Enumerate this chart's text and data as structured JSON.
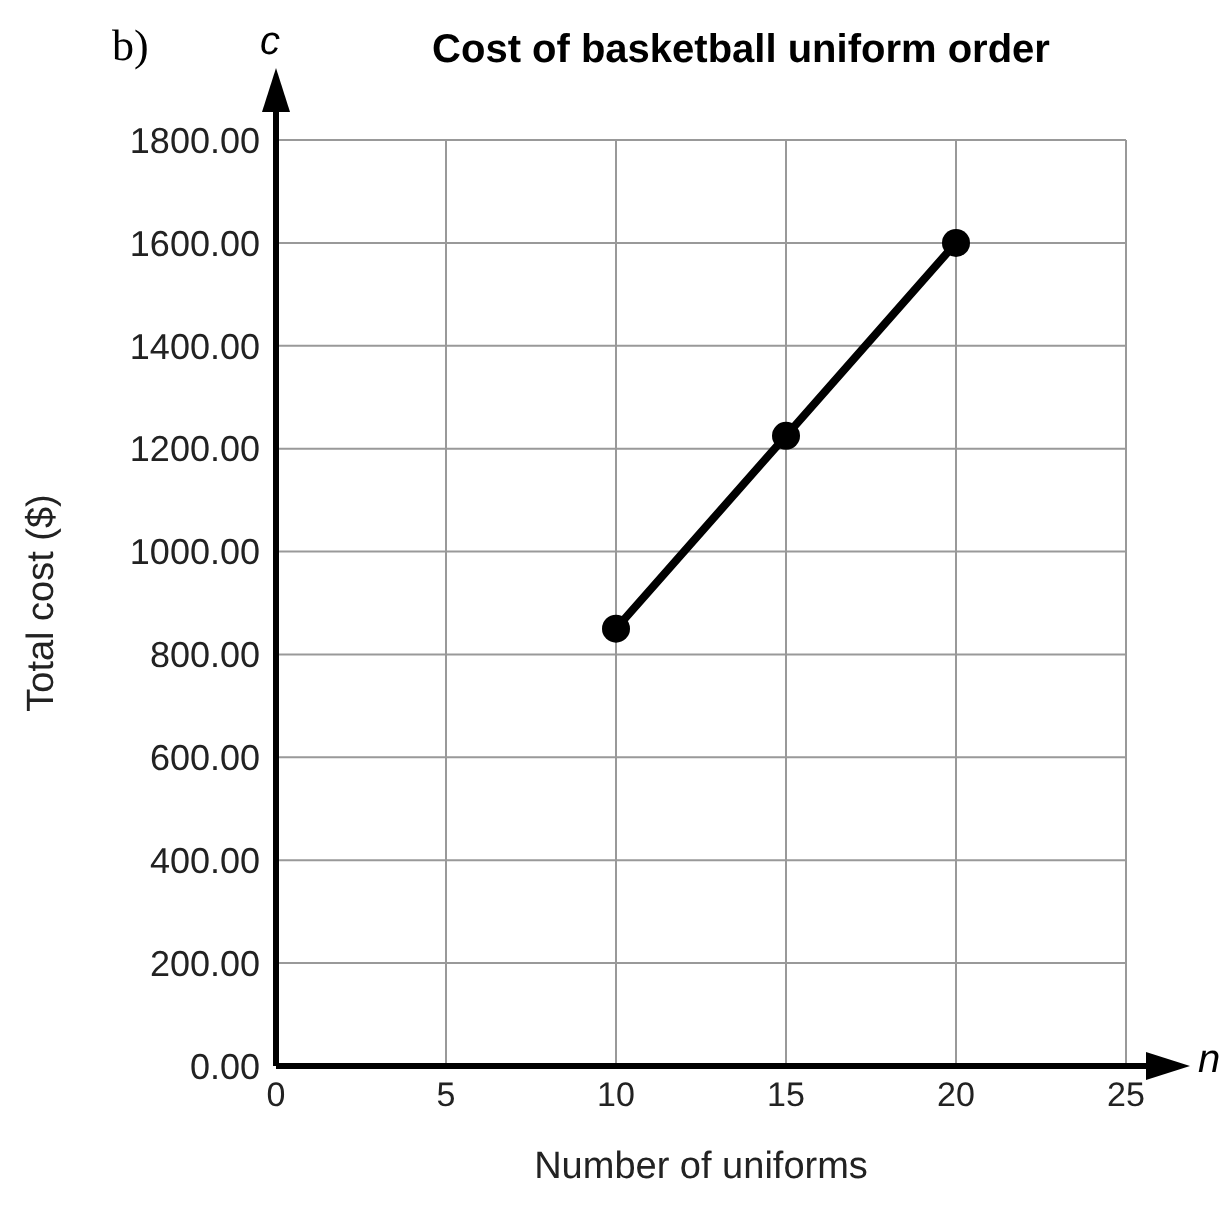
{
  "chart_data": {
    "type": "line",
    "title": "Cost of basketball uniform order",
    "xlabel": "Number of uniforms",
    "ylabel": "Total cost ($)",
    "annotations": [
      "b)",
      "c",
      "n"
    ],
    "x": [
      10,
      15,
      20
    ],
    "series": [
      {
        "color": "#000000",
        "values": [
          850,
          1225,
          1600
        ]
      }
    ],
    "xlim": [
      0,
      25
    ],
    "xticks": [
      0,
      5,
      10,
      15,
      20,
      25
    ],
    "ylim": [
      0,
      1800
    ],
    "yticks": [
      {
        "value": 0,
        "label": "0.00"
      },
      {
        "value": 200,
        "label": "200.00"
      },
      {
        "value": 400,
        "label": "400.00"
      },
      {
        "value": 600,
        "label": "600.00"
      },
      {
        "value": 800,
        "label": "800.00"
      },
      {
        "value": 1000,
        "label": "1000.00"
      },
      {
        "value": 1200,
        "label": "1200.00"
      },
      {
        "value": 1400,
        "label": "1400.00"
      },
      {
        "value": 1600,
        "label": "1600.00"
      },
      {
        "value": 1800,
        "label": "1800.00"
      }
    ],
    "grid": true,
    "marker": "circle",
    "line_style": "solid"
  }
}
